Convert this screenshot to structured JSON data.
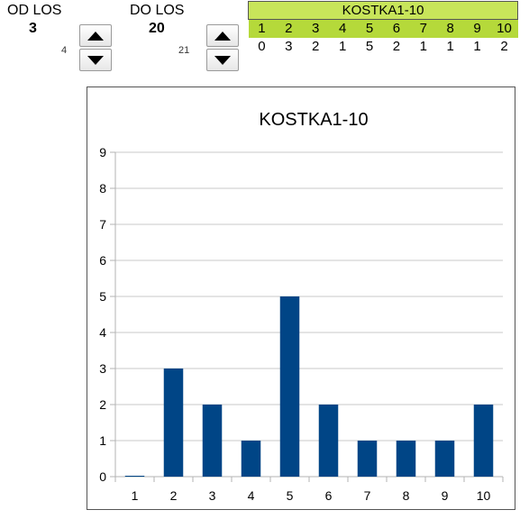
{
  "controls": {
    "from": {
      "label": "OD LOS",
      "value": "3",
      "next": "4"
    },
    "to": {
      "label": "DO LOS",
      "value": "20",
      "next": "21"
    }
  },
  "table": {
    "title": "KOSTKA1-10",
    "headers": [
      "1",
      "2",
      "3",
      "4",
      "5",
      "6",
      "7",
      "8",
      "9",
      "10"
    ],
    "values": [
      "0",
      "3",
      "2",
      "1",
      "5",
      "2",
      "1",
      "1",
      "1",
      "2"
    ]
  },
  "colors": {
    "bar": "#004586",
    "table_header": "#b5d93a",
    "grid": "#c8c8c8"
  },
  "icons": {
    "up": "triangle-up-icon",
    "down": "triangle-down-icon"
  },
  "chart_data": {
    "type": "bar",
    "title": "KOSTKA1-10",
    "categories": [
      "1",
      "2",
      "3",
      "4",
      "5",
      "6",
      "7",
      "8",
      "9",
      "10"
    ],
    "values": [
      0,
      3,
      2,
      1,
      5,
      2,
      1,
      1,
      1,
      2
    ],
    "ylim": [
      0,
      9
    ],
    "yticks": [
      "0",
      "1",
      "2",
      "3",
      "4",
      "5",
      "6",
      "7",
      "8",
      "9"
    ],
    "grid": true,
    "legend": "none",
    "xlabel": "",
    "ylabel": ""
  }
}
